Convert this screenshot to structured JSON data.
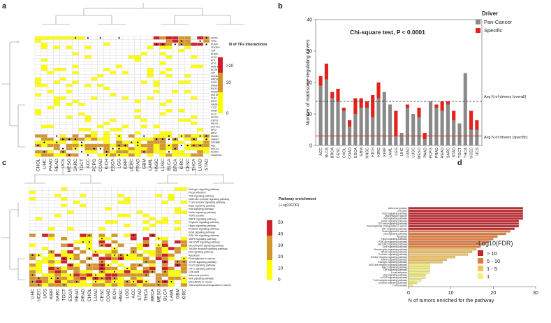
{
  "panels": {
    "a": "a",
    "b": "b",
    "c": "c",
    "d": "d"
  },
  "chart_data": [
    {
      "id": "a",
      "type": "heatmap",
      "title": "",
      "legend_title": "N of TFs interactions",
      "legend_labels": [
        ">20",
        "20",
        "0"
      ],
      "colors": {
        "low": "#ffff00",
        "mid": "#d4962b",
        "high": "#d0202a",
        "empty": "#ffffff"
      },
      "columns": [
        "CHOL",
        "LIHC",
        "PAAD",
        "READ",
        "UCS",
        "MESO",
        "SARC",
        "TGCT",
        "ACC",
        "PCPG",
        "COAD",
        "KICH",
        "ESCA",
        "LGG",
        "KIRP",
        "UCEC",
        "PRAD",
        "GBM",
        "LAML",
        "HNSC",
        "LUSC",
        "BLCA",
        "BRCA",
        "KIRC",
        "CESC",
        "THCA",
        "LUAD",
        "STAD"
      ],
      "rows": [
        "EP300",
        "TP53",
        "RUNX1",
        "CDKN1A",
        "JUN",
        "RUNX1",
        "CHD4",
        "ATN",
        "ATF2",
        "KEAP1",
        "NCOR",
        "YAP",
        "CDKN2A",
        "ARID1B",
        "EGFR",
        "SMAD4",
        "PIK3CA",
        "PMS2A",
        "KMT2B",
        "TLR4",
        "ERG2",
        "KANSL1",
        "CTCF",
        "SIN3A",
        "ELF3",
        "SETD2",
        "USP9X",
        "PBOX1",
        "HOTCH1",
        "NFE2",
        "BRD4",
        "SMAD2",
        "SMAD4",
        "CREBBP",
        "RB1",
        "ARID1A",
        "NCOR1",
        "SMARCA4"
      ]
    },
    {
      "id": "b",
      "type": "bar",
      "title": "Chi-square test, P < 0.0001",
      "ylabel": "Number of matrisome-regulating drivers",
      "ylim": [
        0,
        40
      ],
      "yticks": [
        0,
        10,
        20,
        30,
        40
      ],
      "legend_title": "Driver",
      "categories": [
        "ACC",
        "BLCA",
        "BRCA",
        "CESC",
        "CHOL",
        "COAD",
        "ESCA",
        "GBM",
        "HNSC",
        "KICH",
        "KIRC",
        "KIRP",
        "LAML",
        "LGG",
        "LIHC",
        "LUAD",
        "LUSC",
        "MESO",
        "PAAD",
        "PCPG",
        "PRAD",
        "READ",
        "SARC",
        "STAD",
        "TGCT",
        "THCA",
        "UCEC",
        "UCS"
      ],
      "series": [
        {
          "name": "Pan-Cancer",
          "color": "#8a8a8a",
          "values": [
            19,
            21,
            15,
            14,
            11,
            6,
            10,
            12,
            12,
            9,
            15,
            17,
            13,
            3,
            4,
            12,
            10,
            9,
            2,
            14,
            12,
            11,
            13,
            8,
            7,
            23,
            5,
            5
          ]
        },
        {
          "name": "Specific",
          "color": "#e4221b",
          "values": [
            3,
            5,
            2,
            4,
            1,
            2,
            5,
            3,
            2,
            7,
            5,
            0,
            0,
            8,
            0,
            1,
            0,
            3,
            2,
            0,
            1,
            3,
            1,
            3,
            0,
            0,
            6,
            3
          ]
        }
      ],
      "reference_lines": [
        {
          "label": "Avg N of drivers (overall)",
          "value": 14,
          "style": "dashed"
        },
        {
          "label": "Avg N of drivers (specific)",
          "value": 3,
          "style": "solid-red"
        }
      ]
    },
    {
      "id": "c",
      "type": "heatmap",
      "title": "",
      "legend_title": "Pathway enrichment",
      "legend_subtitle": "(-Log10FDR)",
      "legend_ticks": [
        "50",
        "40",
        "30",
        "20",
        "10",
        "0"
      ],
      "columns": [
        "LIHC",
        "UCEC",
        "UCS",
        "KIRP",
        "SARC",
        "TGCT",
        "ESCA",
        "READ",
        "PRAD",
        "CHOL",
        "LUAD",
        "CESC",
        "COAD",
        "KICH",
        "HNSC",
        "LGG",
        "ACC",
        "STAD",
        "THCA",
        "BRCA",
        "MESO",
        "BLCA",
        "LAML",
        "GBM",
        "KIRC"
      ],
      "rows": [
        "Estrogen signaling pathway",
        "Focal adhesion",
        "TNF signaling pathway",
        "NOD-like receptor signaling pathway",
        "T cell receptor signaling pathway",
        "Rap1 signaling pathway",
        "Ras signaling pathway",
        "Notch signaling pathway",
        "TGFb positive",
        "AMPK signaling pathway",
        "Oxytocin signaling pathway",
        "Hippo signaling pathway",
        "Prolactin signaling pathway",
        "ErbB signaling pathway",
        "PI3K-Akt signaling pathway",
        "MAPK signaling pathway",
        "Jak-STAT signaling pathway",
        "Neurotrophin signaling pathway",
        "Toll-like receptor signaling pathway",
        "p53 signaling pathway",
        "Apoptosis",
        "Proteoglycans in cancer",
        "mTOR signaling pathway",
        "FoxO signaling pathway",
        "HIF-1 signaling pathway",
        "Cell cycle",
        "Adherens junction",
        "Wnt signaling pathway",
        "MicroRNAs in cancer",
        "Transcriptional misregulation in cancer"
      ]
    },
    {
      "id": "d",
      "type": "bar",
      "orientation": "horizontal",
      "xlabel": "N of tumors enriched for the pathway",
      "xlim": [
        0,
        30
      ],
      "xticks": [
        0,
        10,
        20,
        30
      ],
      "legend_title": "-Log10(FDR)",
      "legend_entries": [
        {
          "label": "> 10",
          "color": "#c2252b"
        },
        {
          "label": "5 - 10",
          "color": "#e37a3b"
        },
        {
          "label": "1 - 5",
          "color": "#f2c25c"
        },
        {
          "label": "1",
          "color": "#f4f07a"
        }
      ],
      "categories": [
        "Adherens junction",
        "Cell cycle",
        "FoxO signaling pathway",
        "MicroRNAs in cancer",
        "Wnt signaling pathway",
        "Notch signaling pathway",
        "TGF beta signaling pathway",
        "Transcriptional misregulation in cancer",
        "HIF-1 signaling pathway",
        "Proteoglycans in cancer",
        "p53 signaling pathway",
        "Apoptosis",
        "Hippo signaling pathway",
        "PI3K-Akt signaling pathway",
        "Jak-STAT signaling pathway",
        "ErbB signaling pathway",
        "Neurotrophin signaling pathway",
        "MAPK signaling pathway",
        "Prolactin signaling pathway",
        "Toll-like receptor signaling pathway",
        "AMPK signaling pathway",
        "Estrogen signaling pathway",
        "NOD-like receptor signaling pathway",
        "Rap1 signaling pathway",
        "TNF signaling pathway",
        "Focal adhesion",
        "Ras signaling pathway",
        "mTOR signaling pathway",
        "T cell receptor signaling pathway",
        "Oxytocin signaling pathway",
        "TGFb positive"
      ],
      "values": [
        27,
        27,
        27,
        27,
        27,
        26,
        26,
        26,
        25,
        24,
        23,
        21,
        20,
        19,
        18,
        17,
        16,
        15,
        14,
        11,
        9,
        8,
        5,
        5,
        5,
        5,
        4,
        4,
        3,
        2,
        1
      ],
      "levels": [
        0,
        0,
        0,
        0,
        0,
        0,
        0,
        0,
        0,
        1,
        1,
        1,
        1,
        1,
        1,
        1,
        2,
        2,
        2,
        2,
        2,
        2,
        3,
        3,
        3,
        3,
        3,
        3,
        3,
        3,
        3
      ]
    }
  ]
}
